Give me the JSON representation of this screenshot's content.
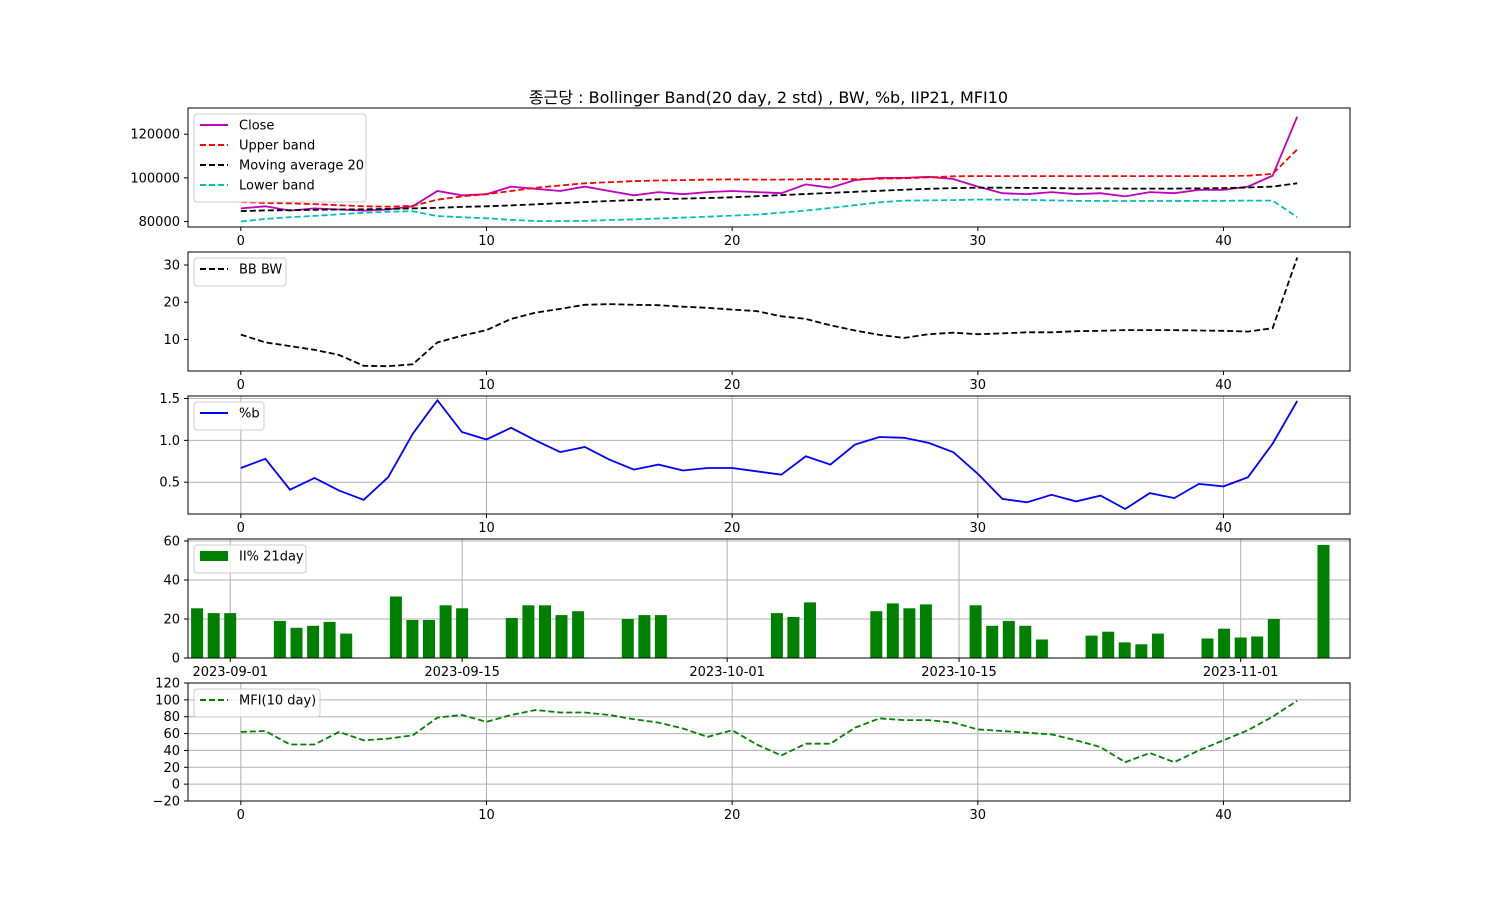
{
  "title": "종근당 : Bollinger Band(20 day, 2 std) , BW, %b, IIP21, MFI10",
  "colors": {
    "close": "#bf00bf",
    "upper": "#ff0000",
    "ma": "#000000",
    "lower": "#00bfbf",
    "bw": "#000000",
    "pb": "#0000ff",
    "ii": "#008000",
    "mfi": "#008000",
    "grid": "#b0b0b0"
  },
  "chart_data": [
    {
      "id": "price",
      "type": "line",
      "x": [
        0,
        1,
        2,
        3,
        4,
        5,
        6,
        7,
        8,
        9,
        10,
        11,
        12,
        13,
        14,
        15,
        16,
        17,
        18,
        19,
        20,
        21,
        22,
        23,
        24,
        25,
        26,
        27,
        28,
        29,
        30,
        31,
        32,
        33,
        34,
        35,
        36,
        37,
        38,
        39,
        40,
        41,
        42,
        43
      ],
      "series": [
        {
          "name": "Close",
          "style": "solid",
          "values": [
            86000,
            87000,
            85000,
            86000,
            85500,
            85000,
            85500,
            87000,
            94000,
            92000,
            92500,
            96000,
            95000,
            94000,
            96000,
            94000,
            92000,
            93500,
            92500,
            93500,
            94000,
            93500,
            93000,
            97000,
            95500,
            99000,
            100000,
            100000,
            100500,
            99500,
            96000,
            93000,
            92500,
            93500,
            92500,
            93000,
            91500,
            93500,
            93000,
            94500,
            94500,
            96000,
            101000,
            128000
          ]
        },
        {
          "name": "Upper band",
          "style": "dashed",
          "values": [
            89000,
            88500,
            88300,
            88000,
            87500,
            87000,
            86800,
            87200,
            90000,
            91500,
            92500,
            94000,
            95500,
            96500,
            97500,
            98000,
            98500,
            98800,
            99000,
            99200,
            99300,
            99200,
            99200,
            99400,
            99400,
            99400,
            99600,
            99800,
            100200,
            100700,
            100800,
            100800,
            100800,
            100800,
            100800,
            100800,
            100800,
            100800,
            100800,
            100800,
            100800,
            101000,
            101800,
            113000
          ]
        },
        {
          "name": "Moving average 20",
          "style": "dashed",
          "values": [
            84800,
            85100,
            85200,
            85400,
            85500,
            85600,
            85800,
            86000,
            86300,
            86700,
            87000,
            87400,
            87900,
            88400,
            88900,
            89400,
            89800,
            90200,
            90500,
            90800,
            91100,
            91600,
            92100,
            92600,
            93100,
            93600,
            94100,
            94600,
            95000,
            95300,
            95500,
            95500,
            95400,
            95300,
            95200,
            95200,
            95100,
            95100,
            95100,
            95200,
            95300,
            95600,
            96000,
            97500
          ]
        },
        {
          "name": "Lower band",
          "style": "dashed",
          "values": [
            80000,
            81200,
            82000,
            82600,
            83300,
            84000,
            84500,
            84700,
            82500,
            82000,
            81500,
            80800,
            80200,
            80200,
            80300,
            80700,
            81000,
            81400,
            81800,
            82200,
            82700,
            83200,
            84100,
            85000,
            86200,
            87500,
            88800,
            89600,
            89700,
            89800,
            90100,
            90000,
            89900,
            89700,
            89500,
            89400,
            89400,
            89400,
            89400,
            89500,
            89500,
            89600,
            89600,
            82000
          ]
        }
      ],
      "ylim": [
        77500,
        132000
      ],
      "yticks": [
        80000,
        100000,
        120000
      ],
      "xlim": [
        -2.15,
        45.15
      ],
      "xticks": [
        0,
        10,
        20,
        30,
        40
      ],
      "grid": false,
      "legend": "top-left"
    },
    {
      "id": "bw",
      "type": "line",
      "x": [
        0,
        1,
        2,
        3,
        4,
        5,
        6,
        7,
        8,
        9,
        10,
        11,
        12,
        13,
        14,
        15,
        16,
        17,
        18,
        19,
        20,
        21,
        22,
        23,
        24,
        25,
        26,
        27,
        28,
        29,
        30,
        31,
        32,
        33,
        34,
        35,
        36,
        37,
        38,
        39,
        40,
        41,
        42,
        43
      ],
      "series": [
        {
          "name": "BB BW",
          "style": "dashed",
          "values": [
            11.3,
            9.2,
            8.2,
            7.2,
            5.8,
            2.9,
            2.8,
            3.3,
            9.2,
            11.0,
            12.5,
            15.5,
            17.2,
            18.2,
            19.3,
            19.5,
            19.3,
            19.2,
            18.8,
            18.5,
            18.0,
            17.6,
            16.2,
            15.5,
            13.8,
            12.4,
            11.2,
            10.4,
            11.4,
            11.8,
            11.4,
            11.6,
            11.9,
            11.9,
            12.2,
            12.3,
            12.5,
            12.5,
            12.5,
            12.4,
            12.3,
            12.1,
            13.0,
            32.0
          ]
        }
      ],
      "ylim": [
        1.5,
        33.5
      ],
      "yticks": [
        10,
        20,
        30
      ],
      "xlim": [
        -2.15,
        45.15
      ],
      "xticks": [
        0,
        10,
        20,
        30,
        40
      ],
      "grid": false,
      "legend": "top-left"
    },
    {
      "id": "pb",
      "type": "line",
      "x": [
        0,
        1,
        2,
        3,
        4,
        5,
        6,
        7,
        8,
        9,
        10,
        11,
        12,
        13,
        14,
        15,
        16,
        17,
        18,
        19,
        20,
        21,
        22,
        23,
        24,
        25,
        26,
        27,
        28,
        29,
        30,
        31,
        32,
        33,
        34,
        35,
        36,
        37,
        38,
        39,
        40,
        41,
        42,
        43
      ],
      "series": [
        {
          "name": "%b",
          "style": "solid",
          "values": [
            0.67,
            0.78,
            0.41,
            0.55,
            0.4,
            0.29,
            0.56,
            1.08,
            1.48,
            1.1,
            1.01,
            1.15,
            1.0,
            0.86,
            0.92,
            0.77,
            0.65,
            0.71,
            0.64,
            0.67,
            0.67,
            0.63,
            0.59,
            0.81,
            0.71,
            0.95,
            1.04,
            1.03,
            0.97,
            0.86,
            0.6,
            0.3,
            0.26,
            0.35,
            0.27,
            0.34,
            0.18,
            0.37,
            0.31,
            0.48,
            0.45,
            0.56,
            0.96,
            1.47
          ]
        }
      ],
      "ylim": [
        0.12,
        1.53
      ],
      "yticks": [
        0.5,
        1.0,
        1.5
      ],
      "ytick_labels": [
        "0.5",
        "1.0",
        "1.5"
      ],
      "xlim": [
        -2.15,
        45.15
      ],
      "xticks": [
        0,
        10,
        20,
        30,
        40
      ],
      "grid": true,
      "legend": "top-left"
    },
    {
      "id": "ii",
      "type": "bar",
      "categories": [
        "2023-08-30",
        "2023-08-31",
        "2023-09-01",
        "2023-09-04",
        "2023-09-05",
        "2023-09-06",
        "2023-09-07",
        "2023-09-08",
        "2023-09-11",
        "2023-09-12",
        "2023-09-13",
        "2023-09-14",
        "2023-09-15",
        "2023-09-18",
        "2023-09-19",
        "2023-09-20",
        "2023-09-21",
        "2023-09-22",
        "2023-09-25",
        "2023-09-26",
        "2023-09-27",
        "2023-10-04",
        "2023-10-05",
        "2023-10-06",
        "2023-10-10",
        "2023-10-11",
        "2023-10-12",
        "2023-10-13",
        "2023-10-16",
        "2023-10-17",
        "2023-10-18",
        "2023-10-19",
        "2023-10-20",
        "2023-10-23",
        "2023-10-24",
        "2023-10-25",
        "2023-10-26",
        "2023-10-27",
        "2023-10-30",
        "2023-10-31",
        "2023-11-01",
        "2023-11-02",
        "2023-11-03",
        "2023-11-06"
      ],
      "series": [
        {
          "name": "II% 21day",
          "values": [
            25.5,
            23,
            23,
            19,
            15.5,
            16.5,
            18.5,
            12.5,
            31.5,
            19.5,
            19.5,
            27,
            25.5,
            20.5,
            27,
            27,
            22,
            24,
            20,
            22,
            22,
            23,
            21,
            28.5,
            24,
            28,
            25.5,
            27.5,
            27,
            16.5,
            19,
            16.5,
            9.5,
            11.5,
            13.5,
            8,
            7,
            12.5,
            10,
            15,
            10.5,
            11,
            20,
            58
          ]
        }
      ],
      "ylim": [
        0,
        61
      ],
      "yticks": [
        0,
        20,
        40,
        60
      ],
      "xticks": [
        "2023-09-01",
        "2023-09-15",
        "2023-10-01",
        "2023-10-15",
        "2023-11-01"
      ],
      "grid": true,
      "legend": "top-left"
    },
    {
      "id": "mfi",
      "type": "line",
      "x": [
        0,
        1,
        2,
        3,
        4,
        5,
        6,
        7,
        8,
        9,
        10,
        11,
        12,
        13,
        14,
        15,
        16,
        17,
        18,
        19,
        20,
        21,
        22,
        23,
        24,
        25,
        26,
        27,
        28,
        29,
        30,
        31,
        32,
        33,
        34,
        35,
        36,
        37,
        38,
        39,
        40,
        41,
        42,
        43
      ],
      "series": [
        {
          "name": "MFI(10 day)",
          "style": "dashed",
          "values": [
            62,
            63,
            47,
            47,
            62,
            52,
            54,
            58,
            79,
            82,
            74,
            82,
            88,
            85,
            85,
            82,
            77,
            73,
            66,
            56,
            64,
            47,
            34,
            48,
            48,
            67,
            78,
            76,
            76,
            73,
            65,
            63,
            61,
            59,
            52,
            44,
            26,
            37,
            26,
            40,
            52,
            64,
            80,
            99
          ]
        }
      ],
      "ylim": [
        -20,
        120
      ],
      "yticks": [
        -20,
        0,
        20,
        40,
        60,
        80,
        100,
        120
      ],
      "ytick_labels": [
        "−20",
        "0",
        "20",
        "40",
        "60",
        "80",
        "100",
        "120"
      ],
      "xlim": [
        -2.15,
        45.15
      ],
      "xticks": [
        0,
        10,
        20,
        30,
        40
      ],
      "grid": true,
      "legend": "top-left"
    }
  ]
}
